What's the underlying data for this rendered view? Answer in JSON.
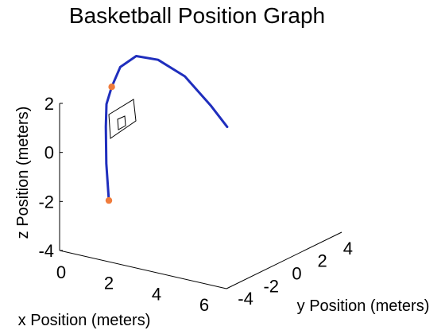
{
  "chart_data": {
    "type": "line3d",
    "title": "Basketball Position Graph",
    "xlabel": "x Position (meters)",
    "ylabel": "y Position (meters)",
    "zlabel": "z Position (meters)",
    "xlim": [
      0,
      7
    ],
    "ylim": [
      -4.5,
      4.5
    ],
    "zlim": [
      -4,
      2
    ],
    "x_ticks": [
      "0",
      "2",
      "4",
      "6"
    ],
    "y_ticks": [
      "-4",
      "-2",
      "0",
      "2",
      "4"
    ],
    "z_ticks": [
      "2",
      "0",
      "-2",
      "-4"
    ],
    "grid": false,
    "series": [
      {
        "color": "#1f2ebd",
        "points": [
          [
            1.0,
            -2.2,
            -2.4
          ],
          [
            0.8,
            -2.0,
            -1.0
          ],
          [
            0.55,
            -1.5,
            0.3
          ],
          [
            0.3,
            -0.9,
            1.0
          ],
          [
            0.1,
            0.0,
            1.4
          ],
          [
            0.0,
            1.0,
            1.9
          ],
          [
            0.2,
            2.0,
            2.1
          ],
          [
            0.7,
            2.9,
            1.8
          ],
          [
            1.5,
            3.6,
            1.1
          ],
          [
            2.4,
            4.0,
            0.0
          ],
          [
            3.0,
            4.2,
            -0.8
          ]
        ]
      }
    ],
    "markers": [
      {
        "color": "#f07c3c",
        "point": [
          1.0,
          -2.2,
          -2.4
        ]
      },
      {
        "color": "#f07c3c",
        "point": [
          0.1,
          0.0,
          1.4
        ]
      }
    ],
    "backboard_color": "#000000"
  }
}
